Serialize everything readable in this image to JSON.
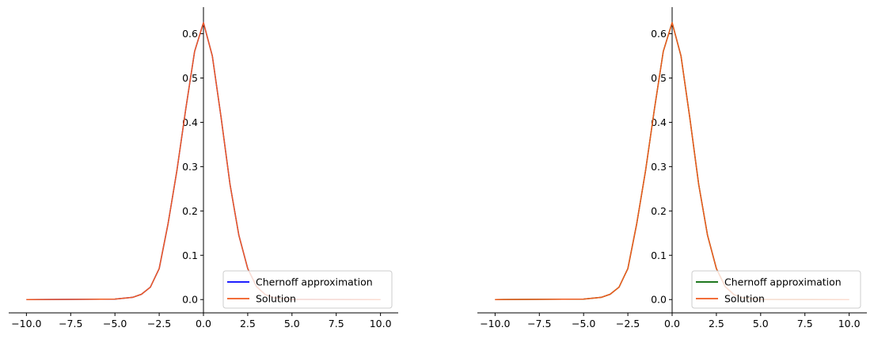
{
  "chart_data": [
    {
      "type": "line",
      "title": "",
      "xlabel": "",
      "ylabel": "",
      "xlim": [
        -11.0,
        11.0
      ],
      "ylim": [
        -0.03,
        0.66
      ],
      "xticks": [
        -10.0,
        -7.5,
        -5.0,
        -2.5,
        0.0,
        2.5,
        5.0,
        7.5,
        10.0
      ],
      "xtick_labels": [
        "−10.0",
        "−7.5",
        "−5.0",
        "−2.5",
        "0.0",
        "2.5",
        "5.0",
        "7.5",
        "10.0"
      ],
      "yticks": [
        0.0,
        0.1,
        0.2,
        0.3,
        0.4,
        0.5,
        0.6
      ],
      "ytick_labels": [
        "0.0",
        "0.1",
        "0.2",
        "0.3",
        "0.4",
        "0.5",
        "0.6"
      ],
      "spines": "centered-at-origin",
      "legend": {
        "position": "lower-right",
        "entries": [
          "Chernoff approximation",
          "Solution"
        ]
      },
      "series": [
        {
          "name": "Chernoff approximation",
          "color": "#0000ff",
          "x": [
            -10,
            -5,
            -4,
            -3.5,
            -3,
            -2.5,
            -2,
            -1.5,
            -1,
            -0.5,
            0,
            0.5,
            1,
            1.5,
            2,
            2.5,
            3,
            3.5,
            4,
            5,
            10
          ],
          "y": [
            0.0,
            0.001,
            0.005,
            0.012,
            0.028,
            0.07,
            0.171,
            0.291,
            0.43,
            0.56,
            0.625,
            0.55,
            0.41,
            0.26,
            0.145,
            0.07,
            0.029,
            0.011,
            0.004,
            0.0005,
            0.0
          ]
        },
        {
          "name": "Solution",
          "color": "#f05a1e",
          "x": [
            -10,
            -5,
            -4,
            -3.5,
            -3,
            -2.5,
            -2,
            -1.5,
            -1,
            -0.5,
            0,
            0.5,
            1,
            1.5,
            2,
            2.5,
            3,
            3.5,
            4,
            5,
            10
          ],
          "y": [
            0.0,
            0.001,
            0.005,
            0.012,
            0.028,
            0.07,
            0.171,
            0.291,
            0.43,
            0.56,
            0.625,
            0.55,
            0.41,
            0.26,
            0.145,
            0.07,
            0.029,
            0.011,
            0.004,
            0.0005,
            0.0
          ]
        }
      ]
    },
    {
      "type": "line",
      "title": "",
      "xlabel": "",
      "ylabel": "",
      "xlim": [
        -11.0,
        11.0
      ],
      "ylim": [
        -0.03,
        0.66
      ],
      "xticks": [
        -10.0,
        -7.5,
        -5.0,
        -2.5,
        0.0,
        2.5,
        5.0,
        7.5,
        10.0
      ],
      "xtick_labels": [
        "−10.0",
        "−7.5",
        "−5.0",
        "−2.5",
        "0.0",
        "2.5",
        "5.0",
        "7.5",
        "10.0"
      ],
      "yticks": [
        0.0,
        0.1,
        0.2,
        0.3,
        0.4,
        0.5,
        0.6
      ],
      "ytick_labels": [
        "0.0",
        "0.1",
        "0.2",
        "0.3",
        "0.4",
        "0.5",
        "0.6"
      ],
      "spines": "centered-at-origin",
      "legend": {
        "position": "lower-right",
        "entries": [
          "Chernoff approximation",
          "Solution"
        ]
      },
      "series": [
        {
          "name": "Chernoff approximation",
          "color": "#006400",
          "x": [
            -10,
            -5,
            -4,
            -3.5,
            -3,
            -2.5,
            -2,
            -1.5,
            -1,
            -0.5,
            0,
            0.5,
            1,
            1.5,
            2,
            2.5,
            3,
            3.5,
            4,
            5,
            10
          ],
          "y": [
            0.0,
            0.001,
            0.005,
            0.012,
            0.028,
            0.07,
            0.171,
            0.291,
            0.43,
            0.56,
            0.625,
            0.55,
            0.41,
            0.26,
            0.145,
            0.07,
            0.029,
            0.011,
            0.004,
            0.0005,
            0.0
          ]
        },
        {
          "name": "Solution",
          "color": "#f05a1e",
          "x": [
            -10,
            -5,
            -4,
            -3.5,
            -3,
            -2.5,
            -2,
            -1.5,
            -1,
            -0.5,
            0,
            0.5,
            1,
            1.5,
            2,
            2.5,
            3,
            3.5,
            4,
            5,
            10
          ],
          "y": [
            0.0,
            0.001,
            0.005,
            0.012,
            0.028,
            0.07,
            0.171,
            0.291,
            0.43,
            0.56,
            0.625,
            0.55,
            0.41,
            0.26,
            0.145,
            0.07,
            0.029,
            0.011,
            0.004,
            0.0005,
            0.0
          ]
        }
      ]
    }
  ]
}
